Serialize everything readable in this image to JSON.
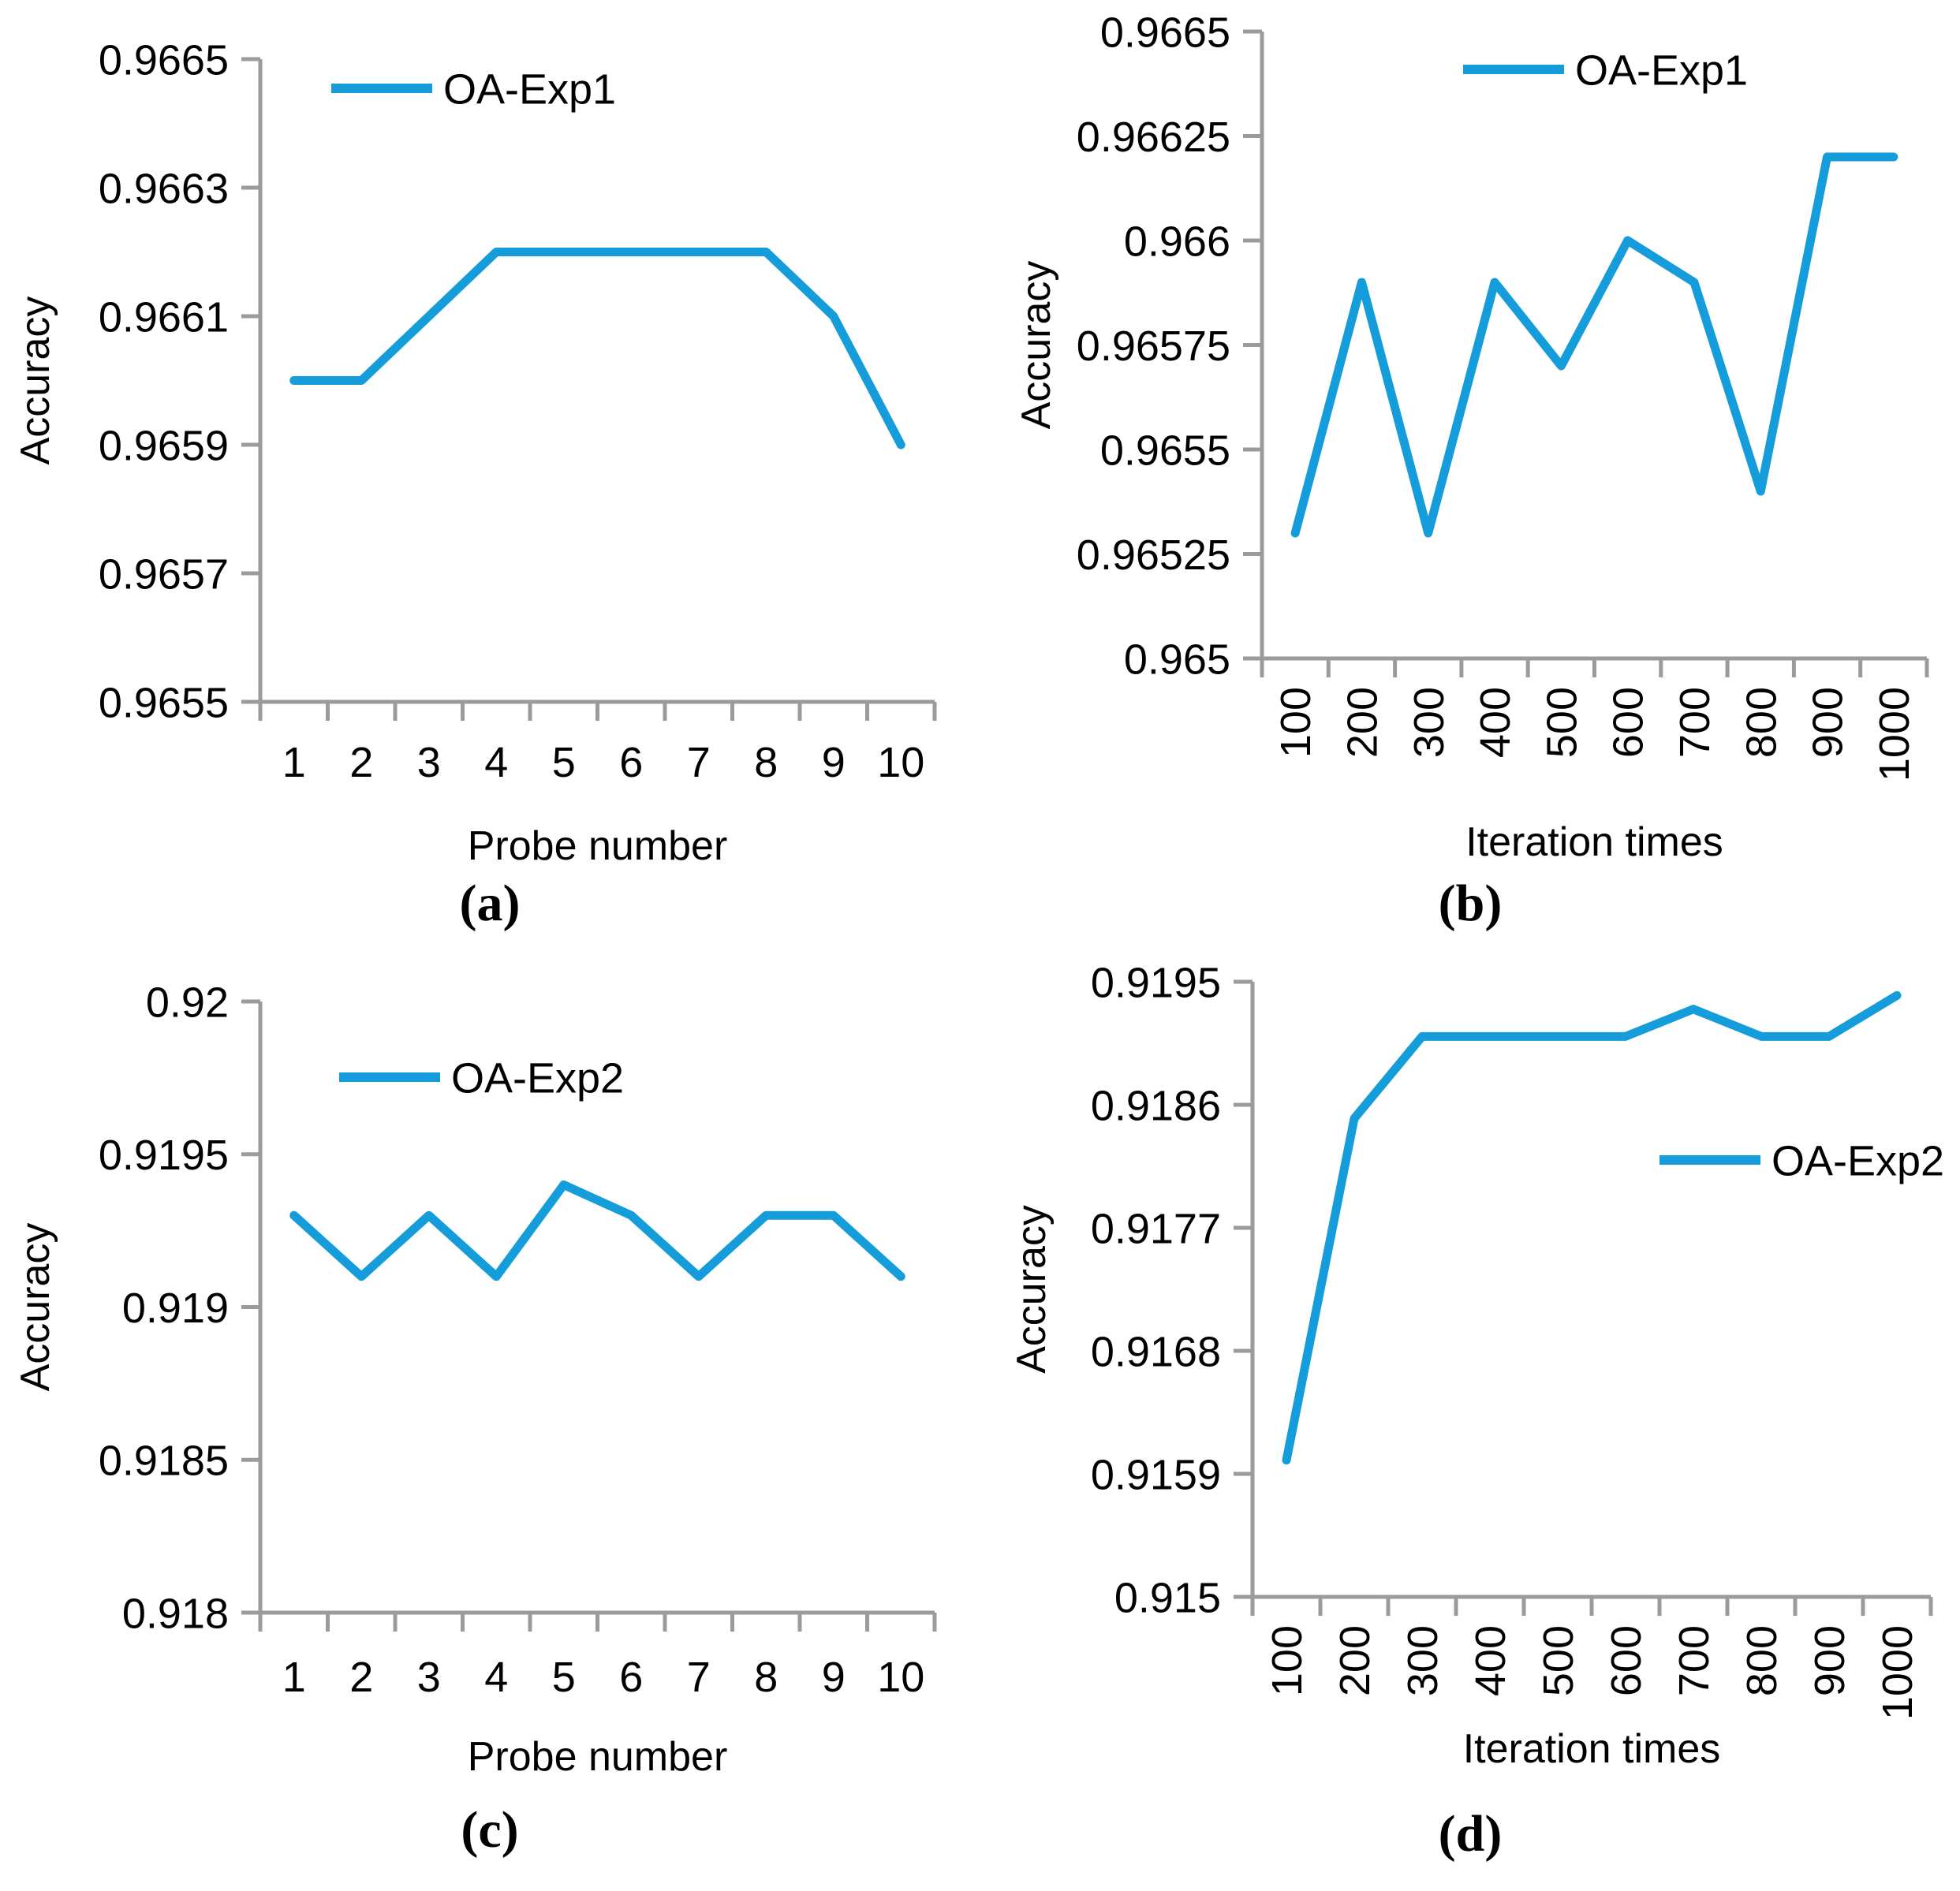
{
  "figure": {
    "type": "multi-panel-line-charts",
    "background": "#ffffff",
    "line_color": "#149CDB",
    "axis_color": "#9B9B9B",
    "text_color": "#000000"
  },
  "chart_data": [
    {
      "id": "a",
      "type": "line",
      "caption": "(a)",
      "xlabel": "Probe number",
      "ylabel": "Accuracy",
      "legend": {
        "label": "OA-Exp1",
        "position": "inside-top-left"
      },
      "categories": [
        "1",
        "2",
        "3",
        "4",
        "5",
        "6",
        "7",
        "8",
        "9",
        "10"
      ],
      "series": [
        {
          "name": "OA-Exp1",
          "values": [
            0.966,
            0.966,
            0.9661,
            0.9662,
            0.9662,
            0.9662,
            0.9662,
            0.9662,
            0.9661,
            0.9659
          ]
        }
      ],
      "ylim": [
        0.9655,
        0.9665
      ],
      "yticks": [
        "0.9655",
        "0.9657",
        "0.9659",
        "0.9661",
        "0.9663",
        "0.9665"
      ],
      "x_tick_rotation": 0,
      "grid": false
    },
    {
      "id": "b",
      "type": "line",
      "caption": "(b)",
      "xlabel": "Iteration times",
      "ylabel": "Accuracy",
      "legend": {
        "label": "OA-Exp1",
        "position": "inside-top-center"
      },
      "categories": [
        "100",
        "200",
        "300",
        "400",
        "500",
        "600",
        "700",
        "800",
        "900",
        "1000"
      ],
      "series": [
        {
          "name": "OA-Exp1",
          "values": [
            0.9653,
            0.9659,
            0.9653,
            0.9659,
            0.9657,
            0.966,
            0.9659,
            0.9654,
            0.9662,
            0.9662
          ]
        }
      ],
      "ylim": [
        0.965,
        0.9665
      ],
      "yticks": [
        "0.965",
        "0.96525",
        "0.9655",
        "0.96575",
        "0.966",
        "0.96625",
        "0.9665"
      ],
      "x_tick_rotation": 90,
      "grid": false
    },
    {
      "id": "c",
      "type": "line",
      "caption": "(c)",
      "xlabel": "Probe number",
      "ylabel": "Accuracy",
      "legend": {
        "label": "OA-Exp2",
        "position": "inside-upper-left"
      },
      "categories": [
        "1",
        "2",
        "3",
        "4",
        "5",
        "6",
        "7",
        "8",
        "9",
        "10"
      ],
      "series": [
        {
          "name": "OA-Exp2",
          "values": [
            0.9193,
            0.9191,
            0.9193,
            0.9191,
            0.9194,
            0.9193,
            0.9191,
            0.9193,
            0.9193,
            0.9191
          ]
        }
      ],
      "ylim": [
        0.918,
        0.92
      ],
      "yticks": [
        "0.918",
        "0.9185",
        "0.919",
        "0.9195",
        "0.92"
      ],
      "x_tick_rotation": 0,
      "grid": false
    },
    {
      "id": "d",
      "type": "line",
      "caption": "(d)",
      "xlabel": "Iteration times",
      "ylabel": "Accuracy",
      "legend": {
        "label": "OA-Exp2",
        "position": "inside-middle-right"
      },
      "categories": [
        "100",
        "200",
        "300",
        "400",
        "500",
        "600",
        "700",
        "800",
        "900",
        "1000"
      ],
      "series": [
        {
          "name": "OA-Exp2",
          "values": [
            0.916,
            0.9185,
            0.9191,
            0.9191,
            0.9191,
            0.9191,
            0.9193,
            0.9191,
            0.9191,
            0.9194
          ]
        }
      ],
      "ylim": [
        0.915,
        0.9195
      ],
      "yticks": [
        "0.915",
        "0.9159",
        "0.9168",
        "0.9177",
        "0.9186",
        "0.9195"
      ],
      "x_tick_rotation": 90,
      "grid": false
    }
  ]
}
